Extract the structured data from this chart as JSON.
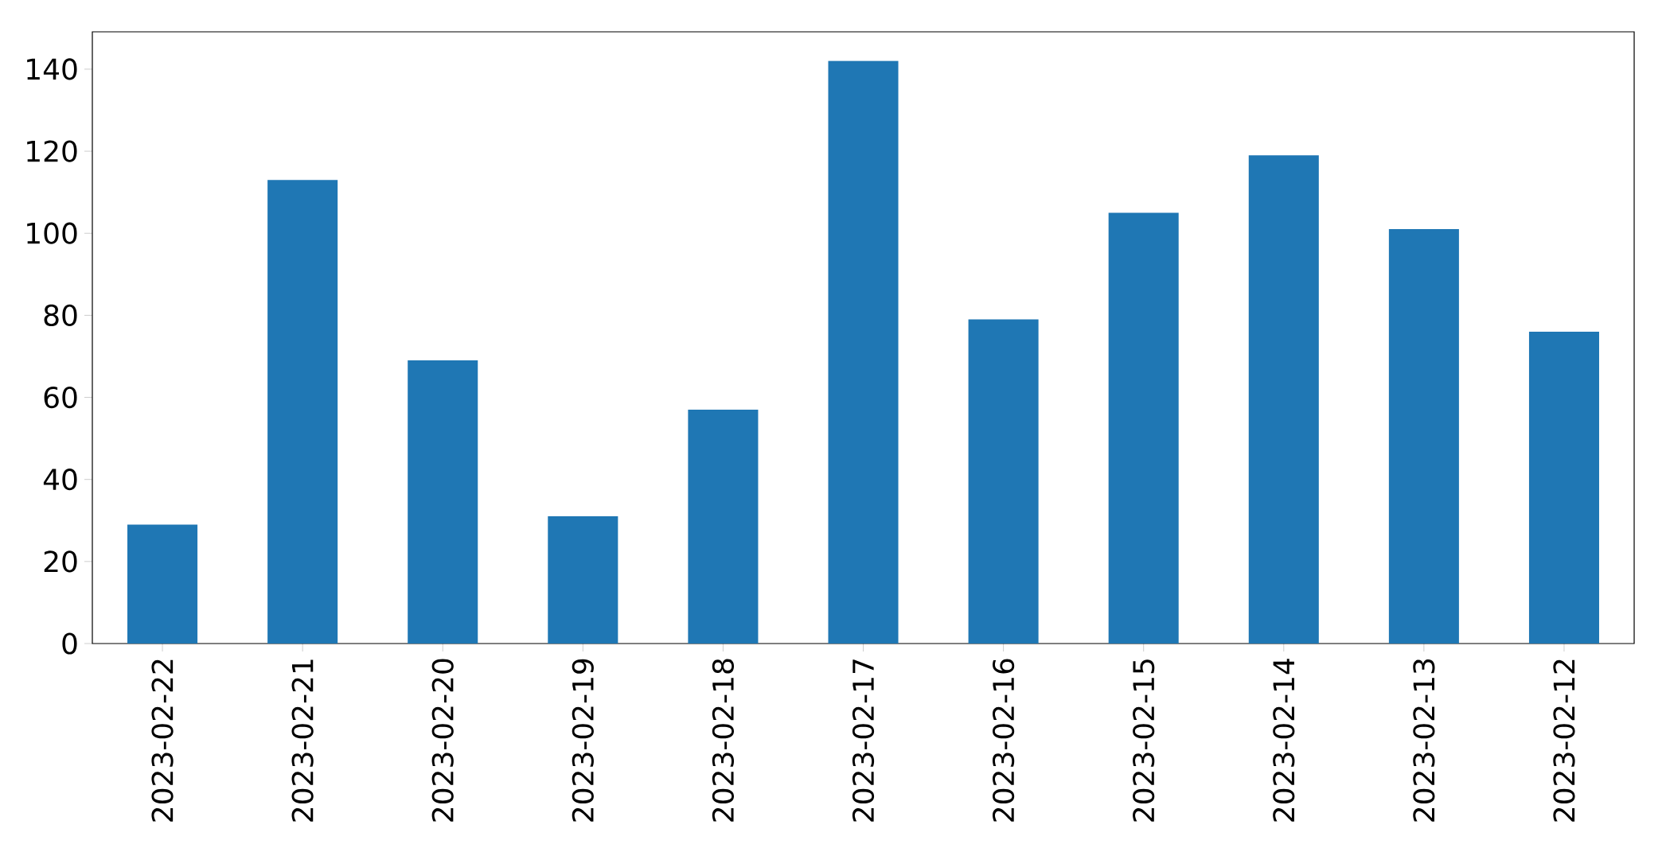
{
  "chart_data": {
    "type": "bar",
    "categories": [
      "2023-02-22",
      "2023-02-21",
      "2023-02-20",
      "2023-02-19",
      "2023-02-18",
      "2023-02-17",
      "2023-02-16",
      "2023-02-15",
      "2023-02-14",
      "2023-02-13",
      "2023-02-12"
    ],
    "values": [
      29,
      113,
      69,
      31,
      57,
      142,
      79,
      105,
      119,
      101,
      76
    ],
    "color": "#1f77b4",
    "ylim": [
      0,
      149.1
    ],
    "yticks": [
      0,
      20,
      40,
      60,
      80,
      100,
      120,
      140
    ]
  }
}
